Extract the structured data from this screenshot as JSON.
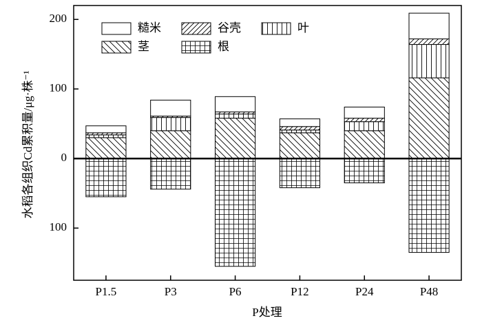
{
  "chart_data": {
    "type": "stacked_bar",
    "categories": [
      "P1.5",
      "P3",
      "P6",
      "P12",
      "P24",
      "P48"
    ],
    "series": [
      {
        "name": "糙米",
        "hatch": "none",
        "values": [
          10,
          23,
          22,
          11,
          16,
          37
        ]
      },
      {
        "name": "谷壳",
        "hatch": "/",
        "values": [
          3,
          2,
          3,
          5,
          5,
          8
        ]
      },
      {
        "name": "叶",
        "hatch": "|",
        "values": [
          4,
          19,
          6,
          4,
          13,
          48
        ]
      },
      {
        "name": "茎",
        "hatch": "\\",
        "values": [
          30,
          40,
          58,
          37,
          40,
          116
        ]
      },
      {
        "name": "根",
        "hatch": "+",
        "values": [
          -55,
          -44,
          -155,
          -42,
          -35,
          -135
        ]
      }
    ],
    "ylim": [
      -175,
      220
    ],
    "yticks": [
      {
        "value": -100,
        "label": "100"
      },
      0,
      100,
      200
    ],
    "ylabel": "水稻各组织Cd累积量/μg·株⁻¹",
    "xlabel": "P处理",
    "legend": "upper left"
  }
}
